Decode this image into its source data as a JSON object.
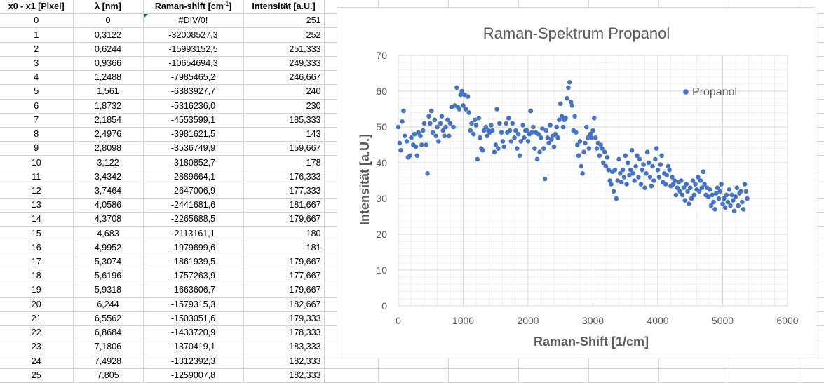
{
  "sheet": {
    "headers": {
      "x_pixel": "x0 - x1 [Pixel]",
      "lambda": "λ [nm]",
      "raman_base": "Raman-shift [cm",
      "raman_sup": "-1",
      "raman_end": "]",
      "intensity": "Intensität [a.U.]"
    },
    "rows": [
      [
        "0",
        "0",
        "#DIV/0!",
        "251"
      ],
      [
        "1",
        "0,3122",
        "-32008527,3",
        "252"
      ],
      [
        "2",
        "0,6244",
        "-15993152,5",
        "251,333"
      ],
      [
        "3",
        "0,9366",
        "-10654694,3",
        "249,333"
      ],
      [
        "4",
        "1,2488",
        "-7985465,2",
        "246,667"
      ],
      [
        "5",
        "1,561",
        "-6383927,7",
        "240"
      ],
      [
        "6",
        "1,8732",
        "-5316236,0",
        "230"
      ],
      [
        "7",
        "2,1854",
        "-4553599,1",
        "185,333"
      ],
      [
        "8",
        "2,4976",
        "-3981621,5",
        "143"
      ],
      [
        "9",
        "2,8098",
        "-3536749,9",
        "159,667"
      ],
      [
        "10",
        "3,122",
        "-3180852,7",
        "178"
      ],
      [
        "11",
        "3,4342",
        "-2889664,1",
        "176,333"
      ],
      [
        "12",
        "3,7464",
        "-2647006,9",
        "177,333"
      ],
      [
        "13",
        "4,0586",
        "-2441681,6",
        "181,667"
      ],
      [
        "14",
        "4,3708",
        "-2265688,5",
        "179,667"
      ],
      [
        "15",
        "4,683",
        "-2113161,1",
        "180"
      ],
      [
        "16",
        "4,9952",
        "-1979699,6",
        "181"
      ],
      [
        "17",
        "5,3074",
        "-1861939,5",
        "179,667"
      ],
      [
        "18",
        "5,6196",
        "-1757263,9",
        "177,667"
      ],
      [
        "19",
        "5,9318",
        "-1663606,7",
        "179,667"
      ],
      [
        "20",
        "6,244",
        "-1579315,3",
        "182,667"
      ],
      [
        "21",
        "6,5562",
        "-1503051,6",
        "179,333"
      ],
      [
        "22",
        "6,8684",
        "-1433720,9",
        "178,333"
      ],
      [
        "23",
        "7,1806",
        "-1370419,1",
        "183,333"
      ],
      [
        "24",
        "7,4928",
        "-1312392,3",
        "182,333"
      ],
      [
        "25",
        "7,805",
        "-1259007,8",
        "182,333"
      ]
    ]
  },
  "chart_data": {
    "type": "scatter",
    "title": "Raman-Spektrum Propanol",
    "xlabel": "Raman-Shift [1/cm]",
    "ylabel": "Intensität [a.U.]",
    "xlim": [
      0,
      6000
    ],
    "ylim": [
      0,
      70
    ],
    "x_ticks": [
      "0",
      "1000",
      "2000",
      "3000",
      "4000",
      "5000",
      "6000"
    ],
    "y_ticks": [
      "0",
      "10",
      "20",
      "30",
      "40",
      "50",
      "60",
      "70"
    ],
    "grid": true,
    "legend_position": "top-right",
    "series": [
      {
        "name": "Propanol",
        "color": "#4472c4",
        "points": [
          [
            0,
            50
          ],
          [
            20,
            45.5
          ],
          [
            40,
            43.5
          ],
          [
            60,
            51.5
          ],
          [
            80,
            54.5
          ],
          [
            100,
            47.5
          ],
          [
            130,
            46
          ],
          [
            150,
            41.5
          ],
          [
            180,
            42
          ],
          [
            200,
            47
          ],
          [
            230,
            45
          ],
          [
            250,
            48
          ],
          [
            270,
            44.5
          ],
          [
            290,
            42
          ],
          [
            310,
            48.5
          ],
          [
            340,
            47.5
          ],
          [
            360,
            45
          ],
          [
            380,
            49
          ],
          [
            400,
            51
          ],
          [
            430,
            45
          ],
          [
            450,
            37
          ],
          [
            470,
            53
          ],
          [
            490,
            51
          ],
          [
            510,
            54.5
          ],
          [
            530,
            48.5
          ],
          [
            560,
            52
          ],
          [
            580,
            47.5
          ],
          [
            600,
            50
          ],
          [
            620,
            46
          ],
          [
            650,
            51
          ],
          [
            670,
            53
          ],
          [
            690,
            49
          ],
          [
            710,
            47.5
          ],
          [
            730,
            50
          ],
          [
            760,
            52
          ],
          [
            780,
            47.5
          ],
          [
            800,
            51
          ],
          [
            820,
            55.5
          ],
          [
            850,
            50
          ],
          [
            870,
            56
          ],
          [
            900,
            61
          ],
          [
            920,
            55.5
          ],
          [
            940,
            55
          ],
          [
            960,
            59
          ],
          [
            980,
            60
          ],
          [
            1000,
            56
          ],
          [
            1020,
            59
          ],
          [
            1040,
            55
          ],
          [
            1070,
            58.5
          ],
          [
            1090,
            54
          ],
          [
            1110,
            49
          ],
          [
            1130,
            51
          ],
          [
            1160,
            48
          ],
          [
            1180,
            52
          ],
          [
            1200,
            50.5
          ],
          [
            1220,
            41
          ],
          [
            1240,
            52.5
          ],
          [
            1260,
            47
          ],
          [
            1280,
            44
          ],
          [
            1300,
            43.5
          ],
          [
            1320,
            49
          ],
          [
            1350,
            50
          ],
          [
            1370,
            47.5
          ],
          [
            1390,
            49
          ],
          [
            1410,
            48.5
          ],
          [
            1430,
            50.5
          ],
          [
            1450,
            49
          ],
          [
            1480,
            43
          ],
          [
            1500,
            45
          ],
          [
            1520,
            55
          ],
          [
            1540,
            44
          ],
          [
            1560,
            51
          ],
          [
            1590,
            48.5
          ],
          [
            1610,
            46
          ],
          [
            1630,
            44.5
          ],
          [
            1660,
            51
          ],
          [
            1680,
            48.5
          ],
          [
            1700,
            52.5
          ],
          [
            1720,
            49
          ],
          [
            1740,
            46
          ],
          [
            1760,
            51
          ],
          [
            1790,
            47
          ],
          [
            1810,
            49
          ],
          [
            1830,
            44
          ],
          [
            1850,
            48
          ],
          [
            1870,
            42
          ],
          [
            1890,
            46
          ],
          [
            1920,
            50.5
          ],
          [
            1940,
            47
          ],
          [
            1960,
            49
          ],
          [
            1980,
            49
          ],
          [
            2000,
            46
          ],
          [
            2020,
            48
          ],
          [
            2040,
            54.5
          ],
          [
            2060,
            48.5
          ],
          [
            2080,
            50
          ],
          [
            2100,
            44
          ],
          [
            2120,
            48.5
          ],
          [
            2140,
            41
          ],
          [
            2160,
            48
          ],
          [
            2180,
            43
          ],
          [
            2200,
            47
          ],
          [
            2220,
            49.5
          ],
          [
            2240,
            44
          ],
          [
            2260,
            35.5
          ],
          [
            2280,
            49
          ],
          [
            2300,
            47
          ],
          [
            2320,
            45.5
          ],
          [
            2340,
            50.5
          ],
          [
            2360,
            46.5
          ],
          [
            2380,
            47.5
          ],
          [
            2400,
            44.5
          ],
          [
            2420,
            48
          ],
          [
            2440,
            50
          ],
          [
            2460,
            47
          ],
          [
            2480,
            52
          ],
          [
            2500,
            56.5
          ],
          [
            2520,
            53
          ],
          [
            2540,
            50
          ],
          [
            2560,
            52
          ],
          [
            2580,
            52.5
          ],
          [
            2600,
            58
          ],
          [
            2620,
            61
          ],
          [
            2640,
            62.5
          ],
          [
            2660,
            57
          ],
          [
            2680,
            56
          ],
          [
            2700,
            49
          ],
          [
            2720,
            53
          ],
          [
            2740,
            48.5
          ],
          [
            2760,
            45
          ],
          [
            2780,
            42
          ],
          [
            2800,
            46
          ],
          [
            2820,
            39
          ],
          [
            2840,
            37
          ],
          [
            2860,
            43
          ],
          [
            2880,
            45.5
          ],
          [
            2900,
            50
          ],
          [
            2920,
            47
          ],
          [
            2940,
            44
          ],
          [
            2960,
            48
          ],
          [
            2980,
            47
          ],
          [
            3000,
            49
          ],
          [
            3020,
            52.5
          ],
          [
            3040,
            47
          ],
          [
            3060,
            44
          ],
          [
            3080,
            45.5
          ],
          [
            3100,
            42
          ],
          [
            3120,
            45
          ],
          [
            3140,
            44
          ],
          [
            3160,
            40
          ],
          [
            3180,
            43
          ],
          [
            3200,
            39
          ],
          [
            3220,
            41.5
          ],
          [
            3240,
            38
          ],
          [
            3260,
            35
          ],
          [
            3280,
            34
          ],
          [
            3300,
            37.5
          ],
          [
            3320,
            32
          ],
          [
            3340,
            38
          ],
          [
            3360,
            30
          ],
          [
            3380,
            35
          ],
          [
            3400,
            41
          ],
          [
            3420,
            37
          ],
          [
            3440,
            34.5
          ],
          [
            3460,
            38
          ],
          [
            3480,
            36
          ],
          [
            3500,
            42
          ],
          [
            3520,
            34
          ],
          [
            3540,
            40
          ],
          [
            3560,
            36.5
          ],
          [
            3580,
            38
          ],
          [
            3600,
            43.5
          ],
          [
            3620,
            37
          ],
          [
            3640,
            35
          ],
          [
            3660,
            39
          ],
          [
            3680,
            42
          ],
          [
            3700,
            36
          ],
          [
            3720,
            41
          ],
          [
            3740,
            34
          ],
          [
            3760,
            38
          ],
          [
            3780,
            39.5
          ],
          [
            3800,
            33
          ],
          [
            3820,
            37
          ],
          [
            3840,
            43
          ],
          [
            3860,
            40
          ],
          [
            3880,
            36
          ],
          [
            3900,
            33.5
          ],
          [
            3920,
            39
          ],
          [
            3940,
            35
          ],
          [
            3960,
            41
          ],
          [
            3980,
            44
          ],
          [
            4000,
            38
          ],
          [
            4020,
            36
          ],
          [
            4040,
            39.5
          ],
          [
            4060,
            42
          ],
          [
            4080,
            34.5
          ],
          [
            4100,
            37
          ],
          [
            4120,
            34
          ],
          [
            4140,
            36.5
          ],
          [
            4160,
            39
          ],
          [
            4180,
            38
          ],
          [
            4200,
            33.5
          ],
          [
            4220,
            36
          ],
          [
            4240,
            34
          ],
          [
            4260,
            35
          ],
          [
            4280,
            31
          ],
          [
            4300,
            33
          ],
          [
            4320,
            34.5
          ],
          [
            4340,
            32
          ],
          [
            4360,
            35
          ],
          [
            4380,
            31
          ],
          [
            4400,
            33
          ],
          [
            4420,
            29.5
          ],
          [
            4440,
            34
          ],
          [
            4460,
            32
          ],
          [
            4480,
            28.5
          ],
          [
            4500,
            33
          ],
          [
            4520,
            30
          ],
          [
            4540,
            35
          ],
          [
            4560,
            31
          ],
          [
            4580,
            34
          ],
          [
            4600,
            32.5
          ],
          [
            4620,
            36
          ],
          [
            4640,
            32
          ],
          [
            4660,
            35
          ],
          [
            4680,
            33
          ],
          [
            4700,
            37.5
          ],
          [
            4720,
            34
          ],
          [
            4740,
            31
          ],
          [
            4760,
            33
          ],
          [
            4780,
            30.5
          ],
          [
            4800,
            32.5
          ],
          [
            4820,
            28
          ],
          [
            4840,
            31
          ],
          [
            4860,
            29
          ],
          [
            4880,
            27
          ],
          [
            4900,
            31.5
          ],
          [
            4920,
            33
          ],
          [
            4940,
            30
          ],
          [
            4960,
            32
          ],
          [
            4980,
            34
          ],
          [
            5000,
            28.5
          ],
          [
            5020,
            30
          ],
          [
            5040,
            27.5
          ],
          [
            5060,
            31
          ],
          [
            5080,
            29
          ],
          [
            5100,
            32.5
          ],
          [
            5120,
            28
          ],
          [
            5140,
            31
          ],
          [
            5160,
            29.5
          ],
          [
            5180,
            26.5
          ],
          [
            5200,
            30.5
          ],
          [
            5220,
            33
          ],
          [
            5240,
            28
          ],
          [
            5260,
            31.5
          ],
          [
            5280,
            32
          ],
          [
            5300,
            29
          ],
          [
            5320,
            27
          ],
          [
            5340,
            34
          ],
          [
            5360,
            32
          ],
          [
            5380,
            30
          ]
        ]
      }
    ]
  }
}
